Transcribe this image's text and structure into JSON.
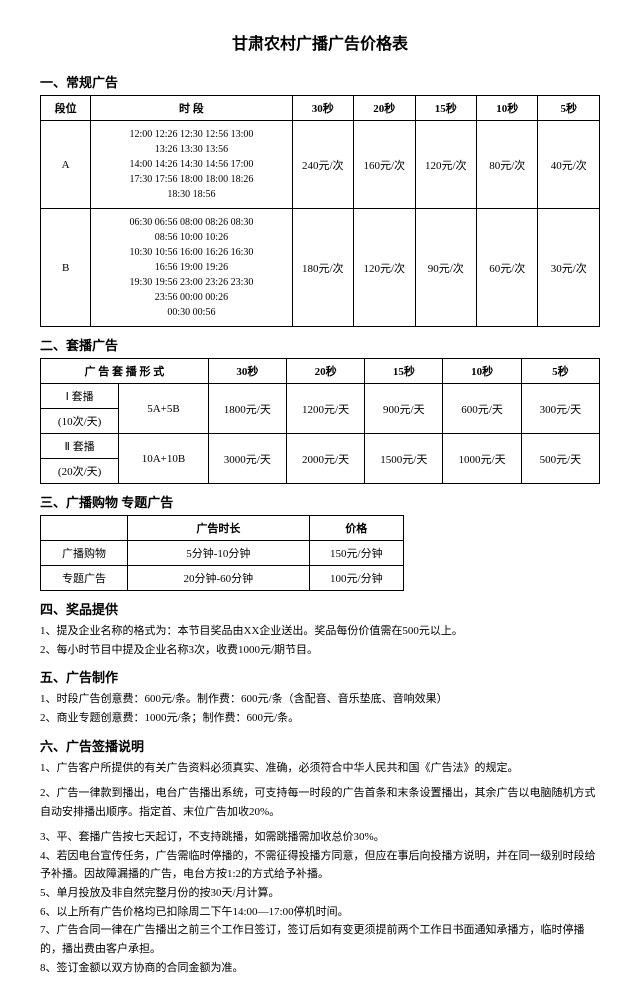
{
  "title": "甘肃农村广播广告价格表",
  "section1": {
    "head": "一、常规广告",
    "cols": [
      "段位",
      "时   段",
      "30秒",
      "20秒",
      "15秒",
      "10秒",
      "5秒"
    ],
    "rows": [
      {
        "slot": "A",
        "times": "12:00  12:26  12:30  12:56  13:00\n13:26  13:30  13:56\n14:00  14:26  14:30  14:56  17:00\n17:30  17:56  18:00  18:00  18:26\n18:30  18:56",
        "p": [
          "240元/次",
          "160元/次",
          "120元/次",
          "80元/次",
          "40元/次"
        ]
      },
      {
        "slot": "B",
        "times": "06:30  06:56  08:00  08:26  08:30\n08:56  10:00  10:26\n10:30  10:56  16:00  16:26  16:30\n16:56  19:00  19:26\n19:30  19:56  23:00  23:26  23:30\n23:56  00:00  00:26\n00:30  00:56",
        "p": [
          "180元/次",
          "120元/次",
          "90元/次",
          "60元/次",
          "30元/次"
        ]
      }
    ]
  },
  "section2": {
    "head": "二、套播广告",
    "cols": [
      "广 告 套 播 形 式",
      "30秒",
      "20秒",
      "15秒",
      "10秒",
      "5秒"
    ],
    "rows": [
      {
        "a": "Ⅰ 套播",
        "b": "(10次/天)",
        "form": "5A+5B",
        "p": [
          "1800元/天",
          "1200元/天",
          "900元/天",
          "600元/天",
          "300元/天"
        ]
      },
      {
        "a": "Ⅱ 套播",
        "b": "(20次/天)",
        "form": "10A+10B",
        "p": [
          "3000元/天",
          "2000元/天",
          "1500元/天",
          "1000元/天",
          "500元/天"
        ]
      }
    ]
  },
  "section3": {
    "head": "三、广播购物 专题广告",
    "cols": [
      "",
      "广告时长",
      "价格"
    ],
    "rows": [
      {
        "name": "广播购物",
        "dur": "5分钟-10分钟",
        "price": "150元/分钟"
      },
      {
        "name": "专题广告",
        "dur": "20分钟-60分钟",
        "price": "100元/分钟"
      }
    ]
  },
  "section4": {
    "head": "四、奖品提供",
    "lines": [
      "1、提及企业名称的格式为：本节目奖品由XX企业送出。奖品每份价值需在500元以上。",
      "2、每小时节目中提及企业名称3次，收费1000元/期节目。"
    ]
  },
  "section5": {
    "head": "五、广告制作",
    "lines": [
      "1、时段广告创意费：600元/条。制作费：600元/条（含配音、音乐垫底、音响效果）",
      "2、商业专题创意费：1000元/条；制作费：600元/条。"
    ]
  },
  "section6": {
    "head": "六、广告签播说明",
    "lines": [
      "1、广告客户所提供的有关广告资料必须真实、准确，必须符合中华人民共和国《广告法》的规定。",
      "",
      "2、广告一律款到播出，电台广告播出系统，可支持每一时段的广告首条和末条设置播出，其余广告以电脑随机方式自动安排播出顺序。指定首、末位广告加收20%。",
      "",
      "3、平、套播广告按七天起订，不支持跳播，如需跳播需加收总价30%。",
      "4、若因电台宣传任务，广告需临时停播的，不需征得投播方同意，但应在事后向投播方说明，并在同一级别时段给予补播。因故障漏播的广告，电台方按1:2的方式给予补播。",
      "5、单月投放及非自然完整月份的按30天/月计算。",
      "6、以上所有广告价格均已扣除周二下午14:00—17:00停机时间。",
      "7、广告合同一律在广告播出之前三个工作日签订，签订后如有变更须提前两个工作日书面通知承播方，临时停播的，播出费由客户承担。",
      "8、签订金额以双方协商的合同金额为准。"
    ]
  }
}
